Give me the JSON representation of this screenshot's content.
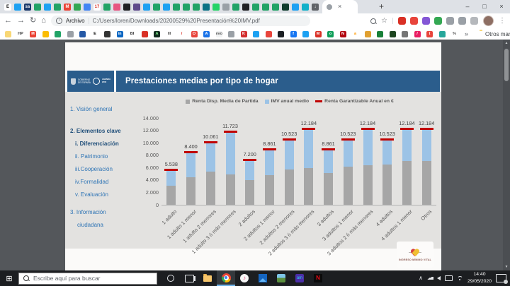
{
  "browser": {
    "tabs": {
      "pinned": [
        {
          "c": "#ffffff",
          "t": "E",
          "tc": "#111111"
        },
        {
          "c": "#1da1f2"
        },
        {
          "c": "#1b3a6b",
          "t": "ss"
        },
        {
          "c": "#21a366"
        },
        {
          "c": "#1da1f2"
        },
        {
          "c": "#21a366"
        },
        {
          "c": "#ea4335",
          "t": "M"
        },
        {
          "c": "#34a853"
        },
        {
          "c": "#4285f4"
        },
        {
          "c": "#ffffff",
          "t": "17",
          "tc": "#d93025"
        },
        {
          "c": "#21a366"
        },
        {
          "c": "#e75480"
        },
        {
          "c": "#202124"
        },
        {
          "c": "#5f4b8b"
        },
        {
          "c": "#1da1f2"
        },
        {
          "c": "#21a366"
        },
        {
          "c": "#1da1f2"
        },
        {
          "c": "#21a366"
        },
        {
          "c": "#21a366"
        },
        {
          "c": "#21a366"
        },
        {
          "c": "#0b7285"
        },
        {
          "c": "#25d366"
        },
        {
          "c": "#9aa0a6"
        },
        {
          "c": "#21a366"
        },
        {
          "c": "#202124"
        },
        {
          "c": "#21a366"
        },
        {
          "c": "#21a366"
        },
        {
          "c": "#21a366"
        },
        {
          "c": "#0f3d2e"
        },
        {
          "c": "#1da1f2"
        },
        {
          "c": "#12b0c9"
        },
        {
          "c": "#5f6368",
          "t": "↓"
        }
      ],
      "extra": [
        {
          "c": "#2d5f3a"
        },
        {
          "c": "#8a5cf5"
        }
      ],
      "tab_close_glyph": "×",
      "new_tab_glyph": "+"
    },
    "window_controls": {
      "minimize": "–",
      "maximize": "□",
      "close": "×"
    },
    "toolbar": {
      "back_glyph": "←",
      "forward_glyph": "→",
      "reload_glyph": "↻",
      "home_glyph": "⌂",
      "info_glyph": "i",
      "file_label": "Archivo",
      "url": "C:/Users/loren/Downloads/20200529%20Presentación%20IMV.pdf",
      "star_glyph": "☆",
      "menu_glyph": "⋮",
      "extensions": [
        "#d93025",
        "#e8453c",
        "#8457d6",
        "#34a853",
        "#9aa0a6",
        "#9aa0a6",
        "#b5b8bc"
      ]
    }
  },
  "bookmarks": {
    "items": [
      {
        "c": "#f8d775"
      },
      {
        "c": "#ffffff",
        "t": "HP",
        "tc": "#444444"
      },
      {
        "c": "#ea4335",
        "t": "M"
      },
      {
        "c": "#fbbc04"
      },
      {
        "c": "#21a366"
      },
      {
        "c": "#9aa0a6"
      },
      {
        "c": "#2458a5"
      },
      {
        "c": "#ffffff",
        "t": "E",
        "tc": "#111111"
      },
      {
        "c": "#333333"
      },
      {
        "c": "#0a66c2",
        "t": "in"
      },
      {
        "c": "#ffffff",
        "t": "BI",
        "tc": "#333333"
      },
      {
        "c": "#d93025"
      },
      {
        "c": "#0f2b1d",
        "t": "A",
        "tc": "#7ee787"
      },
      {
        "c": "#ffffff",
        "t": "III",
        "tc": "#555555"
      },
      {
        "c": "#ffffff",
        "t": "/",
        "tc": "#d93025"
      },
      {
        "c": "#e8453c",
        "t": "O"
      },
      {
        "c": "#1a73e8",
        "t": "A"
      },
      {
        "c": "#f1f3f4",
        "t": "evo",
        "tc": "#555555"
      },
      {
        "c": "#9aa0a6"
      },
      {
        "c": "#d32f2f",
        "t": "K"
      },
      {
        "c": "#1da1f2"
      },
      {
        "c": "#e8453c"
      },
      {
        "c": "#1b1f23"
      },
      {
        "c": "#1877f2",
        "t": "f"
      },
      {
        "c": "#1da1f2"
      },
      {
        "c": "#d93025",
        "t": "M"
      },
      {
        "c": "#0f9d58",
        "t": "o"
      },
      {
        "c": "#b20710",
        "t": "N"
      },
      {
        "c": "#ffffff",
        "t": "a",
        "tc": "#ff9900"
      },
      {
        "c": "#e0a030"
      },
      {
        "c": "#188038"
      },
      {
        "c": "#1e4620"
      },
      {
        "c": "#757575"
      },
      {
        "c": "#e91e63",
        "t": "/"
      },
      {
        "c": "#e8453c",
        "t": "t"
      },
      {
        "c": "#26a69a"
      },
      {
        "c": "#ffffff",
        "t": "%",
        "tc": "#555555"
      }
    ],
    "overflow_glyph": "»",
    "otros_label": "Otros marcadores"
  },
  "slide": {
    "logo": {
      "gobierno_line1": "GOBIERNO",
      "gobierno_line2": "DE ESPAÑA",
      "agenda_line1": "AGENDA",
      "agenda_line2": "2030"
    },
    "title": "Prestaciones medias por tipo de hogar",
    "header_color": "#2b5d8c",
    "sidebar": [
      {
        "label": "1. Visión general",
        "level": 0,
        "bold": false,
        "gap": 0
      },
      {
        "label": "2. Elementos clave",
        "level": 0,
        "bold": true,
        "gap": 13
      },
      {
        "label": "i.  Diferenciación",
        "level": 1,
        "bold": true,
        "gap": 0
      },
      {
        "label": "ii. Patrimonio",
        "level": 1,
        "bold": false,
        "gap": 0
      },
      {
        "label": "iii.Cooperación",
        "level": 1,
        "bold": false,
        "gap": 0
      },
      {
        "label": "iv.Formalidad",
        "level": 1,
        "bold": false,
        "gap": 0
      },
      {
        "label": "v. Evaluación",
        "level": 1,
        "bold": false,
        "gap": 0
      },
      {
        "label": "3. Información",
        "level": 0,
        "bold": false,
        "gap": 7
      },
      {
        "label": "ciudadana",
        "level": 0,
        "bold": false,
        "cont": true,
        "gap": 0
      }
    ],
    "imv_label": "INGRESO MÍNIMO VITAL"
  },
  "chart_data": {
    "type": "bar",
    "stacked": true,
    "categories": [
      "1 adulto",
      "1 adulto 1 menor",
      "1 adulto 2 menores",
      "1 adulto 3 ó más menores",
      "2 adultos",
      "2 adultos 1 menor",
      "2 adultos 2 menores",
      "2 adultos 3 ó más menores",
      "3 adultos",
      "3 adultos 1 menor",
      "3 adultos 2 ó más menores",
      "4 adultos",
      "4 adultos 1 menor",
      "Otros"
    ],
    "series": [
      {
        "name": "Renta Disp. Media de Partida",
        "color": "#a6a6a6",
        "values": [
          3100,
          4450,
          5350,
          4950,
          4000,
          4800,
          5700,
          5900,
          5100,
          6150,
          6350,
          6500,
          7100,
          7050
        ]
      },
      {
        "name": "IMV anual medio",
        "color": "#9cc3e6",
        "values": [
          2438,
          3950,
          4711,
          6773,
          3200,
          4061,
          4823,
          6284,
          3761,
          4373,
          5834,
          4023,
          5084,
          5134
        ]
      }
    ],
    "line_series": {
      "name": "Renta Garantizable Anual en €",
      "color": "#c00000",
      "values": [
        5538,
        8400,
        10061,
        11723,
        7200,
        8861,
        10523,
        12184,
        8861,
        10523,
        12184,
        10523,
        12184,
        12184
      ]
    },
    "value_labels": [
      "5.538",
      "8.400",
      "10.061",
      "11.723",
      "7.200",
      "8.861",
      "10.523",
      "12.184",
      "8.861",
      "10.523",
      "12.184",
      "10.523",
      "12.184",
      "12.184"
    ],
    "ylim": [
      0,
      14000
    ],
    "yticks": [
      "0",
      "2.000",
      "4.000",
      "6.000",
      "8.000",
      "10.000",
      "12.000",
      "14.000"
    ],
    "grid": false,
    "legend_position": "top"
  },
  "taskbar": {
    "search_placeholder": "Escribe aquí para buscar",
    "time": "14:40",
    "date": "29/05/2020",
    "tray_chevron_glyph": "∧",
    "cloud_glyph": "☁",
    "start_glyph": "⊞",
    "music_glyph": "♪",
    "amazon_glyph": "am",
    "netflix_glyph": "N"
  }
}
